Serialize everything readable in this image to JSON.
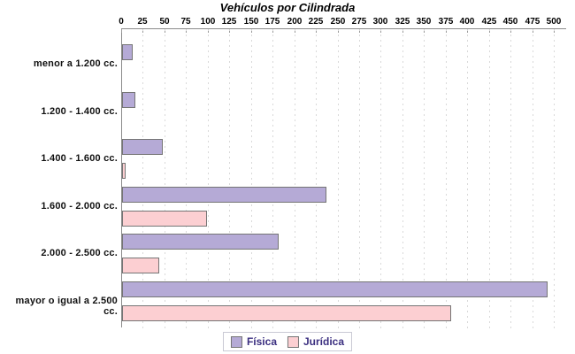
{
  "title": "Vehículos por Cilindrada",
  "chart_data": {
    "type": "bar",
    "orientation": "horizontal",
    "title": "Vehículos por Cilindrada",
    "categories": [
      "menor a 1.200 cc.",
      "1.200 - 1.400 cc.",
      "1.400 - 1.600 cc.",
      "1.600 - 2.000 cc.",
      "2.000 - 2.500 cc.",
      "mayor o igual a 2.500 cc."
    ],
    "series": [
      {
        "name": "Física",
        "color": "#b5aad6",
        "values": [
          10,
          13,
          45,
          234,
          179,
          490
        ]
      },
      {
        "name": "Jurídica",
        "color": "#fccfd2",
        "values": [
          0,
          0,
          2,
          96,
          41,
          378
        ]
      }
    ],
    "xlim": [
      0,
      500
    ],
    "x_tick_step": 25,
    "x_tick_labels": [
      "0",
      "25",
      "50",
      "75",
      "100",
      "125",
      "150",
      "175",
      "200",
      "225",
      "250",
      "275",
      "300",
      "325",
      "350",
      "375",
      "400",
      "425",
      "450",
      "475",
      "500"
    ],
    "axis_position": "top",
    "grid": "vertical-dashed",
    "legend_position": "bottom",
    "legend_entries": [
      "Física",
      "Jurídica"
    ]
  },
  "colors": {
    "background": "#ffffff",
    "fisica_fill": "#b5aad6",
    "juridica_fill": "#fccfd2",
    "bar_border": "#757575",
    "axis_line": "#8a8a8a",
    "gridline": "#d9d9d9",
    "title_text": "#000000",
    "tick_text": "#000000",
    "category_text": "#111111",
    "legend_text": "#3b2f80",
    "legend_border": "#c9c9d4"
  },
  "legend": {
    "items": [
      {
        "label": "Física",
        "color": "#b5aad6"
      },
      {
        "label": "Jurídica",
        "color": "#fccfd2"
      }
    ]
  }
}
